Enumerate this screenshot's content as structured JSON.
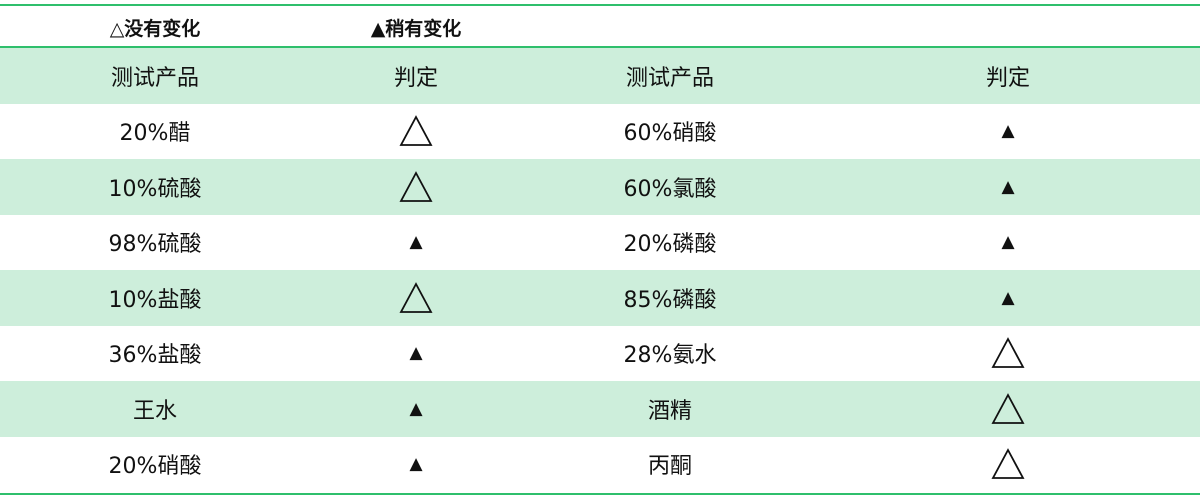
{
  "legend": {
    "no_change": "△没有变化",
    "slight_change": "▲稍有变化"
  },
  "header": [
    "测试产品",
    "判定",
    "测试产品",
    "判定"
  ],
  "rows": [
    {
      "product_left": "20%醋",
      "result_left": "none",
      "product_right": "60%硝酸",
      "result_right": "slight"
    },
    {
      "product_left": "10%硫酸",
      "result_left": "none",
      "product_right": "60%氯酸",
      "result_right": "slight"
    },
    {
      "product_left": "98%硫酸",
      "result_left": "slight",
      "product_right": "20%磷酸",
      "result_right": "slight"
    },
    {
      "product_left": "10%盐酸",
      "result_left": "none",
      "product_right": "85%磷酸",
      "result_right": "slight"
    },
    {
      "product_left": "36%盐酸",
      "result_left": "slight",
      "product_right": "28%氨水",
      "result_right": "none"
    },
    {
      "product_left": "王水",
      "result_left": "slight",
      "product_right": "酒精",
      "result_right": "none"
    },
    {
      "product_left": "20%硝酸",
      "result_left": "slight",
      "product_right": "丙酮",
      "result_right": "none"
    }
  ],
  "symbols": {
    "none": "△",
    "slight": "▲"
  },
  "colors": {
    "accent_line": "#2fbf6c",
    "stripe": "#cdeedb"
  }
}
